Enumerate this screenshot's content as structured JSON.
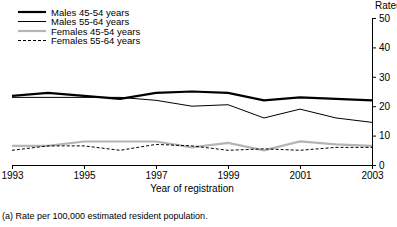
{
  "chart_data": {
    "type": "line",
    "y_label": "Rate(a)",
    "x_label": "Year of registration",
    "footnote": "(a) Rate per 100,000 estimated resident population.",
    "x": [
      1993,
      1994,
      1995,
      1996,
      1997,
      1998,
      1999,
      2000,
      2001,
      2002,
      2003
    ],
    "series": [
      {
        "name": "Males 45-54 years",
        "color": "#000000",
        "line_style": "solid",
        "values": [
          23.5,
          24.5,
          23.5,
          22.5,
          24.5,
          25,
          24.5,
          22,
          23,
          22.5,
          22
        ]
      },
      {
        "name": "Males 55-64 years",
        "color": "#000000",
        "line_style": "solid",
        "values": [
          23,
          23,
          23,
          23,
          22,
          20,
          20.5,
          16,
          19,
          16,
          14.5
        ]
      },
      {
        "name": "Females 45-54 years",
        "color": "#b4b4b4",
        "line_style": "solid",
        "values": [
          6.5,
          6.5,
          8,
          8,
          8,
          6,
          7.5,
          5,
          8,
          7,
          6.5
        ]
      },
      {
        "name": "Females 55-64 years",
        "color": "#000000",
        "line_style": "dashed",
        "values": [
          5,
          6.5,
          6.5,
          5,
          7,
          6.5,
          5,
          5.5,
          5,
          6,
          6
        ]
      }
    ],
    "xlim": [
      1993,
      2003
    ],
    "xticks": [
      1993,
      1995,
      1997,
      1999,
      2001,
      2003
    ],
    "ylim": [
      0,
      50
    ],
    "yticks": [
      0,
      10,
      20,
      30,
      40,
      50
    ],
    "legend": "upper left",
    "grid": false
  }
}
